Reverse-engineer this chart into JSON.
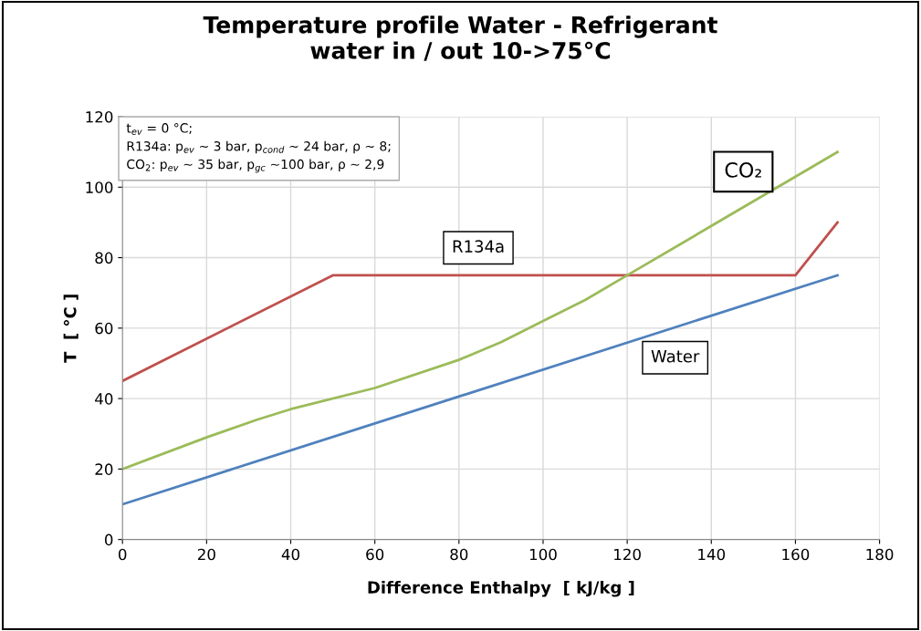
{
  "chart_data": {
    "type": "line",
    "title": "Temperature profile Water - Refrigerant\nwater in / out 10->75°C",
    "xlabel": "Difference Enthalpy  [ kJ/kg ]",
    "ylabel": "T  [ °C ]",
    "series": [
      {
        "name": "R134a",
        "color": "#c0504d",
        "x": [
          0,
          50,
          160,
          170
        ],
        "values": [
          45,
          75,
          75,
          90
        ]
      },
      {
        "name": "CO₂",
        "color": "#9bbb59",
        "x": [
          0,
          20,
          32,
          40,
          60,
          80,
          90,
          100,
          110,
          120,
          140,
          160,
          170
        ],
        "values": [
          20,
          29,
          34,
          37,
          43,
          51,
          56,
          62,
          68,
          75,
          89,
          103,
          110
        ]
      },
      {
        "name": "Water",
        "color": "#4f81bd",
        "x": [
          0,
          170
        ],
        "values": [
          10,
          75
        ]
      }
    ],
    "annotations": [
      "t$_{ev}$ = 0 °C;\nR134a: p$_{ev}$ ~ 3 bar, p$_{cond}$ ~ 24 bar, ρ ~ 8;\nCO$_{2}$: p$_{ev}$ ~ 35 bar, p$_{gc}$ ~100 bar, ρ ~ 2,9"
    ],
    "xlim": [
      0,
      180
    ],
    "xticks": [
      0,
      20,
      40,
      60,
      80,
      100,
      120,
      140,
      160,
      180
    ],
    "ylim": [
      0,
      120
    ],
    "yticks": [
      0,
      20,
      40,
      60,
      80,
      100,
      120
    ],
    "grid": true,
    "legend": false,
    "marker": "none",
    "line_style": "solid"
  }
}
